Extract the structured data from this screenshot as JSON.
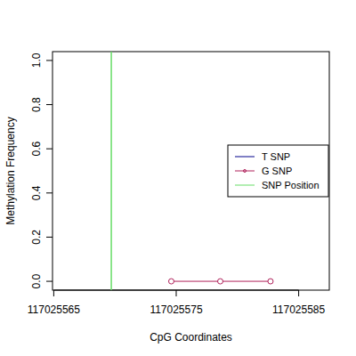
{
  "chart_data": {
    "type": "line",
    "x_label": "CpG Coordinates",
    "y_label": "Methylation Frequency",
    "x": [
      117025574.6,
      117025578.6,
      117025582.7
    ],
    "series": [
      {
        "name": "T SNP",
        "color": "#00008b",
        "values": [
          null,
          null,
          null
        ]
      },
      {
        "name": "G SNP",
        "color": "#b0205a",
        "values": [
          0,
          0,
          0
        ],
        "marker": "circle"
      }
    ],
    "snp_position": {
      "name": "SNP Position",
      "x": 117025569.7,
      "color": "#66dd66"
    },
    "xlim": [
      117025564.9,
      117025587.5
    ],
    "ylim": [
      -0.04,
      1.04
    ],
    "xticks": [
      117025565,
      117025575,
      117025585
    ],
    "yticks": [
      {
        "value": 0,
        "label": "0.0"
      },
      {
        "value": 0.2,
        "label": "0.2"
      },
      {
        "value": 0.4,
        "label": "0.4"
      },
      {
        "value": 0.6,
        "label": "0.6"
      },
      {
        "value": 0.8,
        "label": "0.8"
      },
      {
        "value": 1,
        "label": "1.0"
      }
    ],
    "legend": "right",
    "grid": false
  }
}
